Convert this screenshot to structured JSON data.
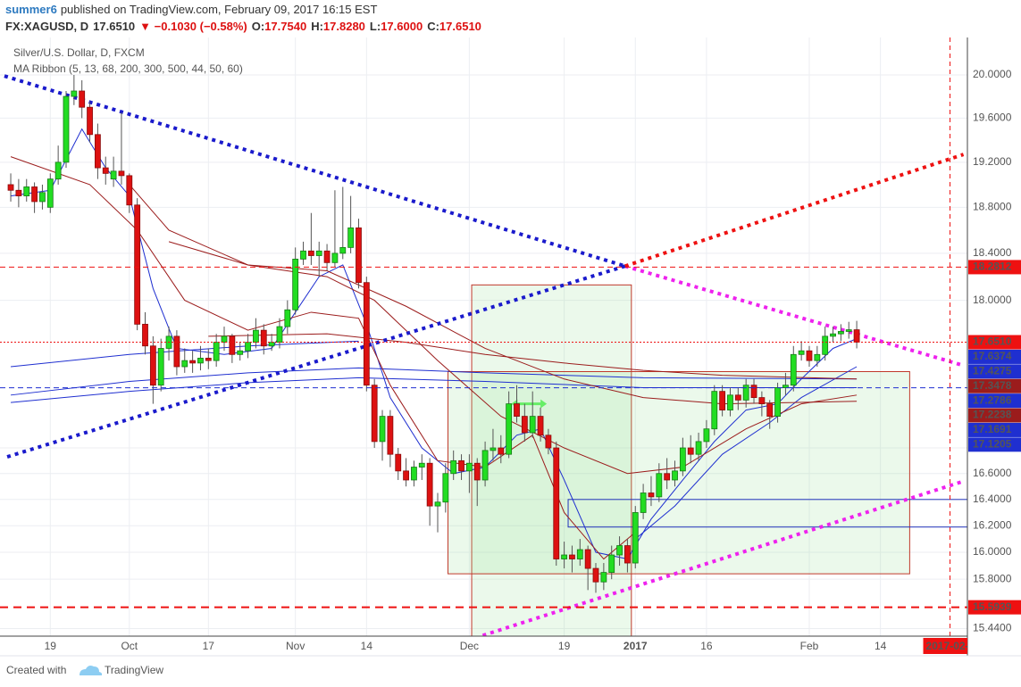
{
  "chart_data": {
    "type": "candlestick",
    "header": {
      "author": "summer6",
      "published": "published on TradingView.com, February 09, 2017 16:15 EST",
      "symbol": "FX:XAGUSD, D",
      "last": "17.6510",
      "change": "▼ −0.1030 (−0.58%)",
      "ohlc": [
        {
          "key": "O:",
          "value": "17.7540"
        },
        {
          "key": "H:",
          "value": "17.8280"
        },
        {
          "key": "L:",
          "value": "17.6000"
        },
        {
          "key": "C:",
          "value": "17.6510"
        }
      ]
    },
    "legend": [
      "Silver/U.S. Dollar, D, FXCM",
      "MA Ribbon (5, 13, 68, 200, 300, 500, 44, 50, 60)"
    ],
    "footer": {
      "created": "Created with",
      "brand": "TradingView"
    },
    "log_scale": true,
    "grid": true,
    "up_color": "#22dd22",
    "down_color": "#dd1111",
    "wick_color": "#555555",
    "xlim": [
      -1.36,
      121.0
    ],
    "ylim": [
      15.385,
      20.353
    ],
    "xticks": [
      {
        "value": 5,
        "label": "19"
      },
      {
        "value": 15,
        "label": "Oct"
      },
      {
        "value": 25,
        "label": "17"
      },
      {
        "value": 36,
        "label": "Nov"
      },
      {
        "value": 45,
        "label": "14"
      },
      {
        "value": 58,
        "label": "Dec"
      },
      {
        "value": 70,
        "label": "19"
      },
      {
        "value": 79,
        "label": "2017",
        "bold": true
      },
      {
        "value": 88,
        "label": "16"
      },
      {
        "value": 101,
        "label": "Feb"
      },
      {
        "value": 110,
        "label": "14"
      }
    ],
    "yticks": [
      {
        "value": 20,
        "label": "20.0000"
      },
      {
        "value": 19.6,
        "label": "19.6000"
      },
      {
        "value": 19.2,
        "label": "19.2000"
      },
      {
        "value": 18.8,
        "label": "18.8000"
      },
      {
        "value": 18.4,
        "label": "18.4000"
      },
      {
        "value": 18,
        "label": "18.0000"
      },
      {
        "value": 16.8,
        "label": "16.8000"
      },
      {
        "value": 16.6,
        "label": "16.6000"
      },
      {
        "value": 16.4,
        "label": "16.4000"
      },
      {
        "value": 16.2,
        "label": "16.2000"
      },
      {
        "value": 16,
        "label": "16.0000"
      },
      {
        "value": 15.8,
        "label": "15.8000"
      },
      {
        "value": 15.44,
        "label": "15.4400"
      }
    ],
    "ohlc": [
      [
        19.0,
        19.1,
        18.85,
        18.95
      ],
      [
        18.95,
        19.05,
        18.8,
        18.9
      ],
      [
        18.9,
        19.05,
        18.85,
        18.98
      ],
      [
        18.98,
        19.02,
        18.75,
        18.85
      ],
      [
        18.85,
        19.0,
        18.78,
        18.93
      ],
      [
        18.8,
        19.1,
        18.75,
        19.05
      ],
      [
        19.05,
        19.35,
        19.0,
        19.2
      ],
      [
        19.2,
        19.85,
        19.15,
        19.8
      ],
      [
        19.8,
        20.0,
        19.72,
        19.85
      ],
      [
        19.85,
        19.95,
        19.6,
        19.7
      ],
      [
        19.7,
        19.75,
        19.38,
        19.45
      ],
      [
        19.45,
        19.55,
        19.05,
        19.15
      ],
      [
        19.15,
        19.25,
        19.0,
        19.1
      ],
      [
        19.05,
        19.25,
        18.98,
        19.12
      ],
      [
        19.12,
        19.65,
        19.0,
        19.08
      ],
      [
        19.08,
        19.1,
        18.75,
        18.82
      ],
      [
        18.82,
        18.88,
        17.75,
        17.8
      ],
      [
        17.8,
        17.9,
        17.55,
        17.62
      ],
      [
        17.62,
        17.7,
        17.15,
        17.3
      ],
      [
        17.3,
        17.68,
        17.25,
        17.6
      ],
      [
        17.6,
        17.78,
        17.5,
        17.7
      ],
      [
        17.7,
        17.75,
        17.38,
        17.45
      ],
      [
        17.45,
        17.6,
        17.4,
        17.5
      ],
      [
        17.5,
        17.58,
        17.4,
        17.48
      ],
      [
        17.48,
        17.62,
        17.42,
        17.52
      ],
      [
        17.52,
        17.6,
        17.43,
        17.5
      ],
      [
        17.5,
        17.72,
        17.45,
        17.65
      ],
      [
        17.65,
        17.78,
        17.58,
        17.7
      ],
      [
        17.7,
        17.72,
        17.48,
        17.55
      ],
      [
        17.55,
        17.65,
        17.5,
        17.58
      ],
      [
        17.58,
        17.72,
        17.52,
        17.65
      ],
      [
        17.65,
        17.85,
        17.6,
        17.75
      ],
      [
        17.75,
        17.8,
        17.55,
        17.62
      ],
      [
        17.62,
        17.72,
        17.58,
        17.65
      ],
      [
        17.65,
        17.85,
        17.6,
        17.78
      ],
      [
        17.78,
        18.0,
        17.72,
        17.92
      ],
      [
        17.92,
        18.45,
        17.88,
        18.35
      ],
      [
        18.35,
        18.5,
        18.3,
        18.42
      ],
      [
        18.42,
        18.75,
        18.3,
        18.38
      ],
      [
        18.38,
        18.5,
        18.2,
        18.42
      ],
      [
        18.42,
        18.48,
        18.25,
        18.32
      ],
      [
        18.32,
        18.95,
        18.28,
        18.4
      ],
      [
        18.4,
        18.98,
        18.35,
        18.45
      ],
      [
        18.45,
        18.9,
        18.4,
        18.62
      ],
      [
        18.62,
        18.7,
        18.1,
        18.15
      ],
      [
        18.15,
        18.2,
        17.25,
        17.3
      ],
      [
        17.3,
        17.35,
        16.8,
        16.85
      ],
      [
        16.85,
        17.1,
        16.7,
        17.05
      ],
      [
        17.05,
        17.1,
        16.65,
        16.75
      ],
      [
        16.75,
        16.8,
        16.55,
        16.62
      ],
      [
        16.62,
        16.72,
        16.5,
        16.55
      ],
      [
        16.55,
        16.7,
        16.5,
        16.65
      ],
      [
        16.65,
        16.75,
        16.55,
        16.68
      ],
      [
        16.68,
        16.72,
        16.2,
        16.35
      ],
      [
        16.35,
        16.45,
        16.15,
        16.38
      ],
      [
        16.38,
        16.68,
        16.3,
        16.6
      ],
      [
        16.6,
        16.78,
        16.55,
        16.7
      ],
      [
        16.7,
        16.75,
        16.55,
        16.62
      ],
      [
        16.62,
        16.75,
        16.45,
        16.68
      ],
      [
        16.68,
        16.72,
        16.35,
        16.55
      ],
      [
        16.55,
        16.85,
        16.5,
        16.78
      ],
      [
        16.78,
        16.95,
        16.7,
        16.8
      ],
      [
        16.8,
        16.9,
        16.68,
        16.75
      ],
      [
        16.75,
        17.25,
        16.72,
        17.15
      ],
      [
        17.15,
        17.3,
        17.0,
        17.05
      ],
      [
        17.05,
        17.15,
        16.85,
        16.92
      ],
      [
        16.92,
        17.25,
        16.88,
        17.05
      ],
      [
        17.05,
        17.12,
        16.85,
        16.9
      ],
      [
        16.9,
        16.95,
        16.75,
        16.8
      ],
      [
        16.8,
        16.85,
        15.9,
        15.95
      ],
      [
        15.95,
        16.08,
        15.88,
        15.98
      ],
      [
        15.98,
        16.05,
        15.85,
        15.95
      ],
      [
        15.95,
        16.1,
        15.9,
        16.02
      ],
      [
        16.02,
        16.05,
        15.72,
        15.88
      ],
      [
        15.88,
        15.92,
        15.7,
        15.78
      ],
      [
        15.78,
        15.92,
        15.72,
        15.85
      ],
      [
        15.85,
        16.05,
        15.8,
        15.98
      ],
      [
        15.98,
        16.12,
        15.9,
        16.05
      ],
      [
        16.05,
        16.1,
        15.85,
        15.92
      ],
      [
        15.92,
        16.35,
        15.88,
        16.3
      ],
      [
        16.3,
        16.52,
        16.25,
        16.45
      ],
      [
        16.45,
        16.58,
        16.35,
        16.42
      ],
      [
        16.42,
        16.68,
        16.38,
        16.6
      ],
      [
        16.6,
        16.72,
        16.48,
        16.55
      ],
      [
        16.55,
        16.7,
        16.5,
        16.62
      ],
      [
        16.62,
        16.88,
        16.58,
        16.8
      ],
      [
        16.8,
        16.9,
        16.68,
        16.75
      ],
      [
        16.75,
        16.92,
        16.7,
        16.85
      ],
      [
        16.85,
        17.02,
        16.8,
        16.95
      ],
      [
        16.95,
        17.3,
        16.9,
        17.25
      ],
      [
        17.25,
        17.3,
        17.05,
        17.1
      ],
      [
        17.1,
        17.28,
        17.05,
        17.22
      ],
      [
        17.22,
        17.28,
        17.1,
        17.18
      ],
      [
        17.18,
        17.35,
        17.12,
        17.3
      ],
      [
        17.3,
        17.35,
        17.15,
        17.2
      ],
      [
        17.2,
        17.25,
        17.05,
        17.15
      ],
      [
        17.15,
        17.18,
        16.95,
        17.05
      ],
      [
        17.05,
        17.32,
        17.0,
        17.28
      ],
      [
        17.28,
        17.4,
        17.22,
        17.3
      ],
      [
        17.3,
        17.62,
        17.25,
        17.55
      ],
      [
        17.55,
        17.66,
        17.5,
        17.58
      ],
      [
        17.58,
        17.62,
        17.45,
        17.5
      ],
      [
        17.5,
        17.62,
        17.45,
        17.55
      ],
      [
        17.55,
        17.78,
        17.5,
        17.7
      ],
      [
        17.7,
        17.78,
        17.65,
        17.72
      ],
      [
        17.72,
        17.8,
        17.66,
        17.74
      ],
      [
        17.74,
        17.82,
        17.68,
        17.754
      ],
      [
        17.754,
        17.828,
        17.6,
        17.651
      ]
    ],
    "ma_lines": [
      {
        "color": "#1f2fd0",
        "x": [
          0,
          5,
          9,
          12,
          15,
          18,
          21,
          27,
          33,
          36,
          39,
          42,
          45,
          48,
          52,
          56,
          60,
          64,
          67,
          70,
          74,
          78,
          81,
          85,
          89,
          93,
          97,
          100,
          104,
          107
        ],
        "values": [
          18.9,
          18.95,
          19.5,
          19.15,
          18.9,
          18.1,
          17.6,
          17.55,
          17.6,
          17.9,
          18.2,
          18.3,
          17.8,
          17.2,
          16.8,
          16.6,
          16.65,
          16.9,
          16.95,
          16.55,
          16.0,
          15.95,
          16.25,
          16.55,
          16.85,
          17.1,
          17.15,
          17.35,
          17.6,
          17.68
        ]
      },
      {
        "color": "#1f2fd0",
        "x": [
          79,
          84,
          90,
          96,
          100,
          107
        ],
        "values": [
          16.1,
          16.35,
          16.75,
          17.0,
          17.2,
          17.45
        ]
      },
      {
        "color": "#1f2fd0",
        "x": [
          0,
          15,
          30,
          44
        ],
        "values": [
          17.45,
          17.55,
          17.62,
          17.66
        ]
      },
      {
        "color": "#1f2fd0",
        "x": [
          0,
          15,
          30,
          44,
          60,
          80,
          107
        ],
        "values": [
          17.22,
          17.33,
          17.4,
          17.44,
          17.4,
          17.36,
          17.35
        ]
      },
      {
        "color": "#1f2fd0",
        "x": [
          0,
          15,
          30,
          44,
          60,
          80,
          107
        ],
        "values": [
          17.16,
          17.25,
          17.32,
          17.36,
          17.33,
          17.28,
          17.28
        ]
      },
      {
        "color": "#9b1c1c",
        "x": [
          0,
          10,
          16,
          22,
          30,
          38,
          44,
          48,
          54,
          60,
          66,
          70,
          75,
          79
        ],
        "values": [
          19.25,
          19.0,
          18.6,
          18.0,
          17.75,
          17.9,
          17.85,
          17.3,
          16.7,
          16.65,
          16.9,
          16.3,
          15.95,
          16.15
        ]
      },
      {
        "color": "#9b1c1c",
        "x": [
          15,
          20,
          30,
          40,
          46,
          54,
          62,
          70,
          78,
          85,
          93,
          100,
          107
        ],
        "values": [
          19.0,
          18.6,
          18.3,
          18.2,
          18.0,
          17.5,
          17.05,
          16.8,
          16.6,
          16.65,
          16.95,
          17.15,
          17.22
        ]
      },
      {
        "color": "#9b1c1c",
        "x": [
          20,
          30,
          40,
          50,
          60,
          70,
          80,
          90,
          107
        ],
        "values": [
          18.5,
          18.3,
          18.25,
          17.95,
          17.6,
          17.35,
          17.2,
          17.15,
          17.17
        ]
      },
      {
        "color": "#9b1c1c",
        "x": [
          25,
          40,
          50,
          60,
          70,
          80,
          90,
          107
        ],
        "values": [
          17.7,
          17.72,
          17.65,
          17.55,
          17.48,
          17.42,
          17.38,
          17.35
        ]
      }
    ],
    "trendlines": [
      {
        "color": "#1a1acc",
        "x": [
          -0.8,
          77.7
        ],
        "y": [
          19.99,
          18.29
        ]
      },
      {
        "color": "#ee22ee",
        "x": [
          77.7,
          120.5
        ],
        "y": [
          18.29,
          17.46
        ]
      },
      {
        "color": "#1a1acc",
        "x": [
          -0.45,
          77.7
        ],
        "y": [
          16.73,
          18.29
        ]
      },
      {
        "color": "#ee1111",
        "x": [
          77.7,
          120.5
        ],
        "y": [
          18.29,
          19.27
        ]
      },
      {
        "color": "#ee22ee",
        "x": [
          59.7,
          120.5
        ],
        "y": [
          15.39,
          16.54
        ]
      }
    ],
    "rectangles": [
      {
        "stroke": "#c0392b",
        "fill": "#8fe08f",
        "x": [
          58.3,
          78.5
        ],
        "y": [
          15.3,
          18.13
        ]
      },
      {
        "stroke": "#c0392b",
        "fill": "#8fe08f",
        "x": [
          55.3,
          113.7
        ],
        "y": [
          15.84,
          17.41
        ]
      },
      {
        "stroke": "#2233bb",
        "fill": "none",
        "x": [
          70.5,
          122
        ],
        "y": [
          16.19,
          16.4
        ]
      }
    ],
    "arrow": {
      "color": "#66ee66",
      "x": [
        63.3,
        67.8
      ],
      "y": 17.15
    },
    "cursor": {
      "x": 118.8,
      "label": "2017-02-2",
      "color": "#ee1111"
    },
    "price_labels": [
      {
        "value": 18.2812,
        "label": "18.2812",
        "color": "#ee1111",
        "line": "dashed"
      },
      {
        "value": 17.651,
        "label": "17.6510",
        "color": "#ee1111",
        "line": "dotted"
      },
      {
        "value": 17.6374,
        "label": "17.6374",
        "color": "#1f2fd0"
      },
      {
        "value": 17.4275,
        "label": "17.4275",
        "color": "#1f2fd0"
      },
      {
        "value": 17.3478,
        "label": "17.3478",
        "color": "#9b1c1c"
      },
      {
        "value": 17.2786,
        "label": "17.2786",
        "color": "#1f2fd0",
        "line": "dashed"
      },
      {
        "value": 17.2238,
        "label": "17.2238",
        "color": "#9b1c1c"
      },
      {
        "value": 17.1691,
        "label": "17.1691",
        "color": "#1f2fd0"
      },
      {
        "value": 17.1205,
        "label": "17.1205",
        "color": "#1f2fd0"
      },
      {
        "value": 15.5939,
        "label": "15.5939",
        "color": "#ee1111",
        "line": "thick"
      }
    ]
  }
}
